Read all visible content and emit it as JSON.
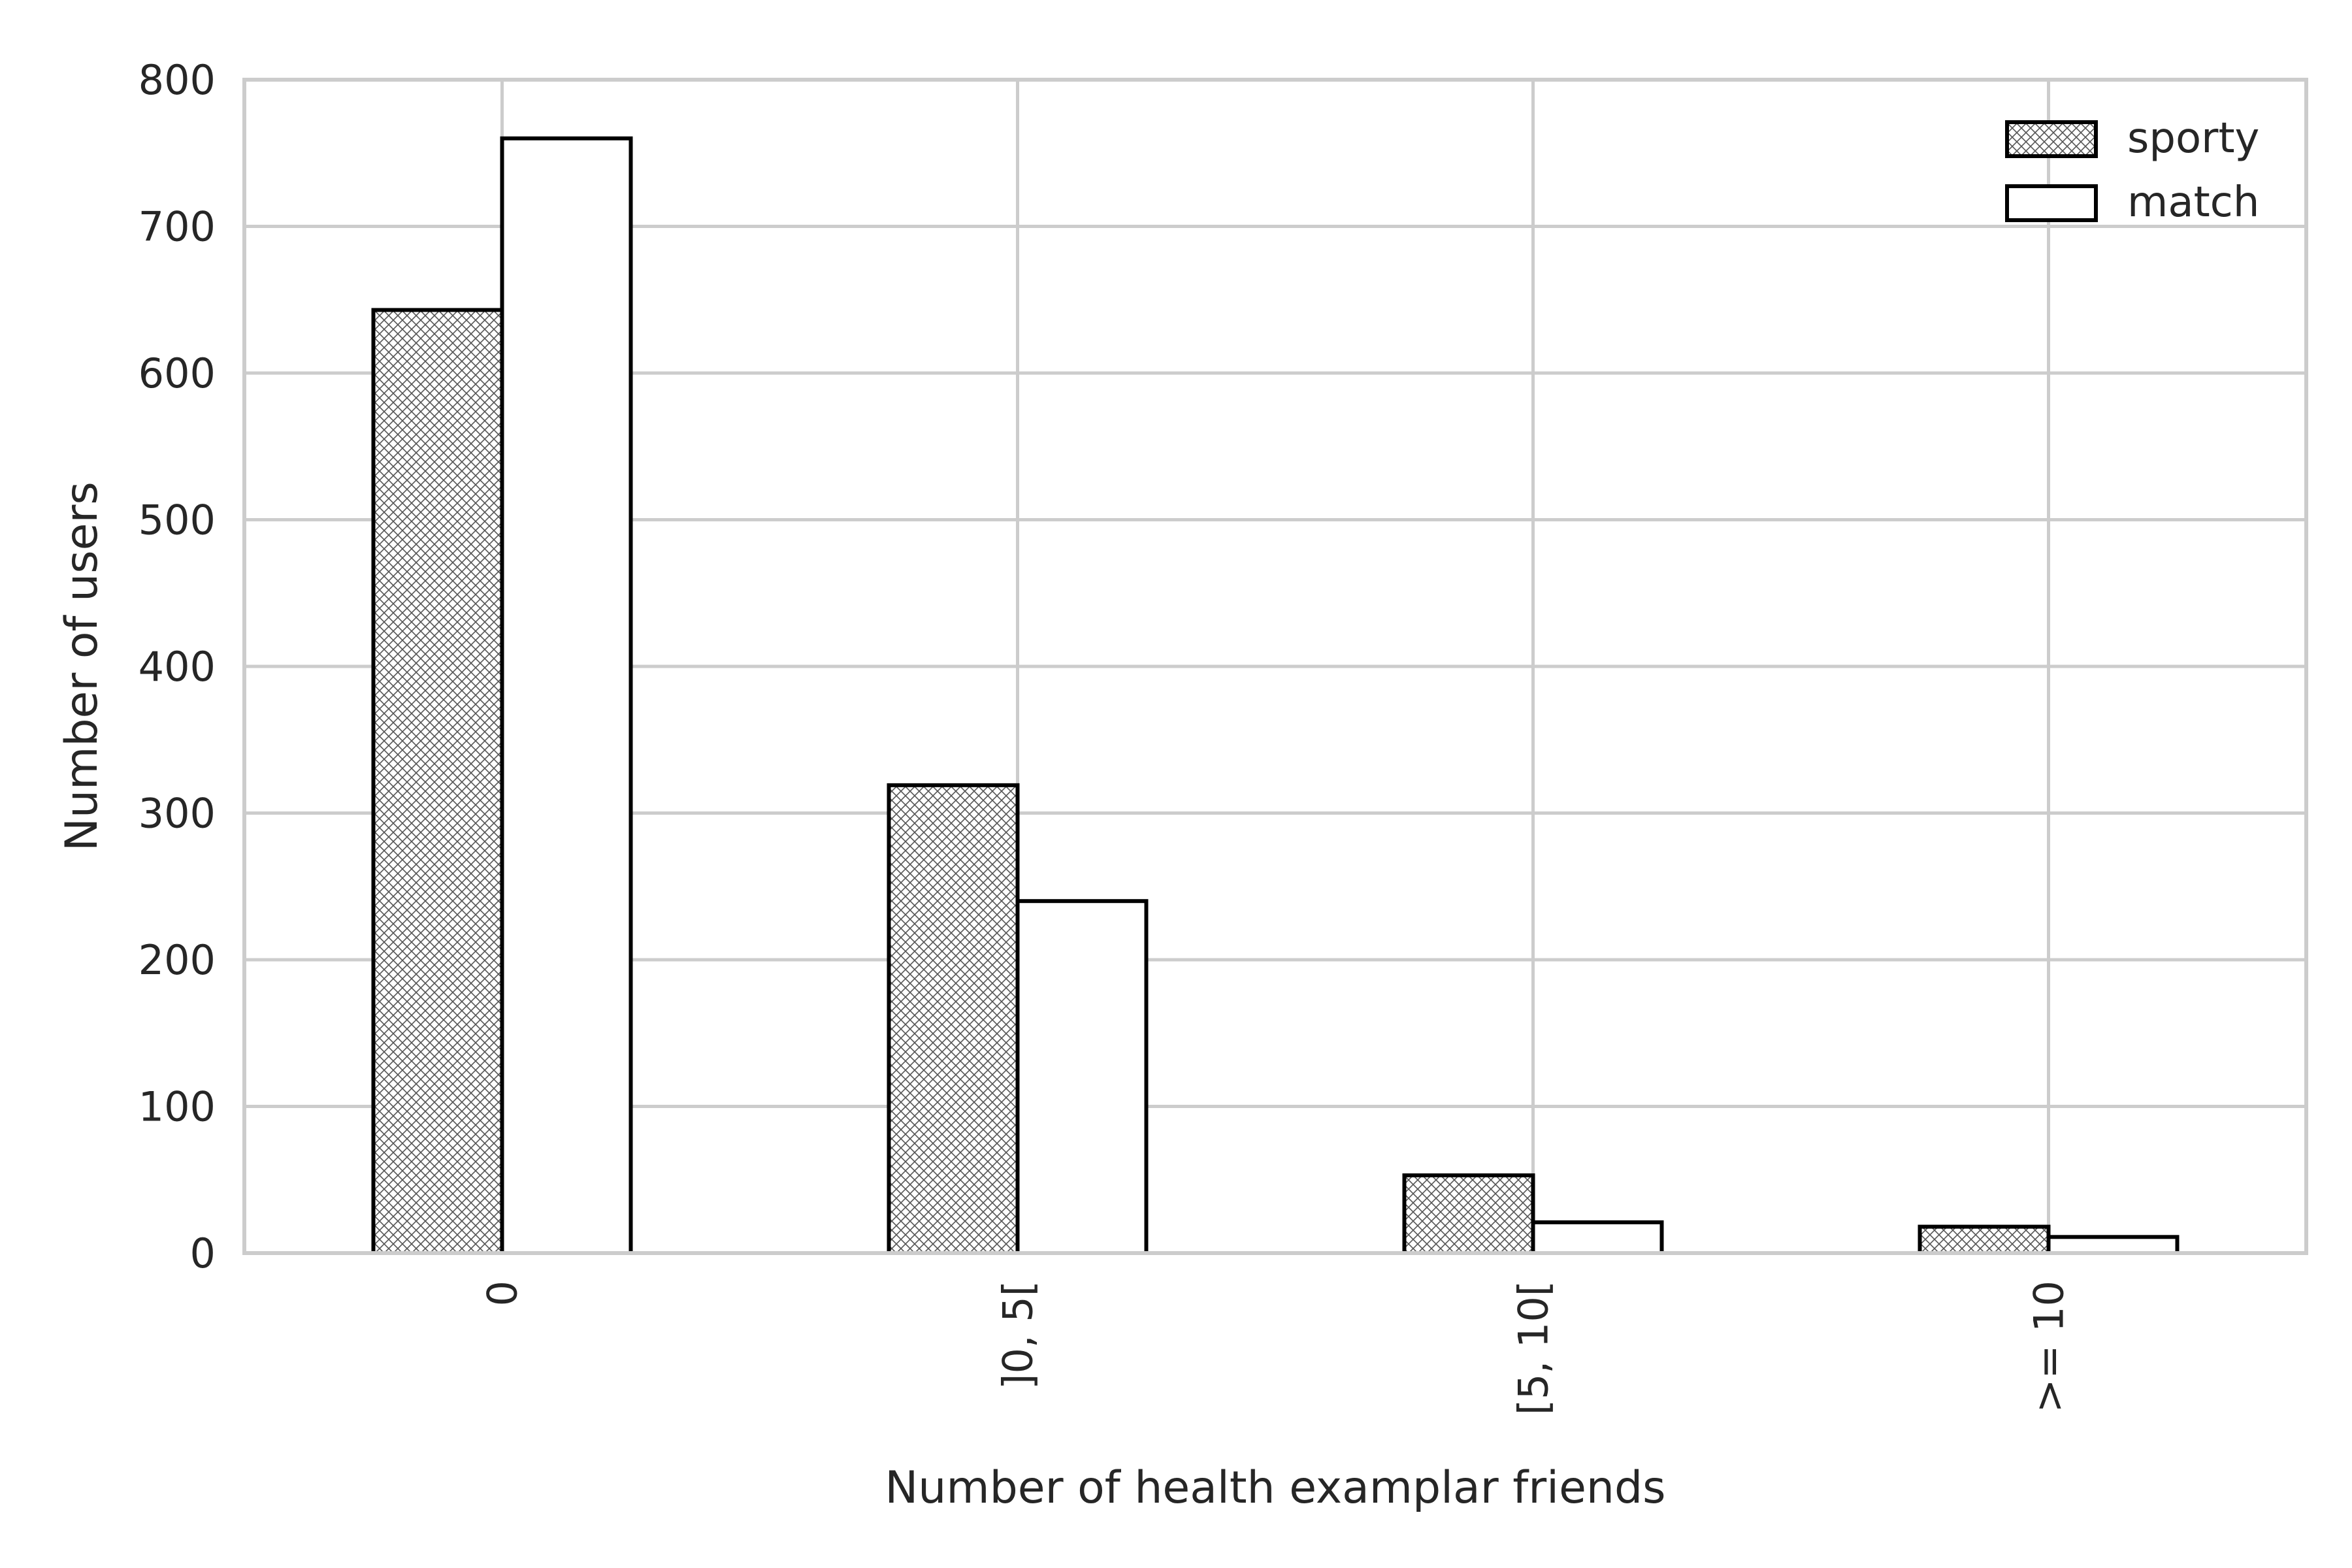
{
  "chart_data": {
    "type": "bar",
    "title": "",
    "xlabel": "Number of health examplar friends",
    "ylabel": "Number of users",
    "categories": [
      "0",
      "]0, 5[",
      "[5, 10[",
      ">= 10"
    ],
    "series": [
      {
        "name": "sporty",
        "values": [
          643,
          319,
          53,
          18
        ],
        "pattern": "crosshatch",
        "fill": "#ffffff",
        "edge": "#000000"
      },
      {
        "name": "match",
        "values": [
          760,
          240,
          21,
          11
        ],
        "pattern": "none",
        "fill": "#ffffff",
        "edge": "#000000"
      }
    ],
    "ylim": [
      0,
      800
    ],
    "yticks": [
      "0",
      "100",
      "200",
      "300",
      "400",
      "500",
      "600",
      "700",
      "800"
    ],
    "ytick_values": [
      0,
      100,
      200,
      300,
      400,
      500,
      600,
      700,
      800
    ],
    "grid": true,
    "grid_color": "#cccccc",
    "legend_position": "top-right",
    "x_tick_rotation": "vertical"
  }
}
